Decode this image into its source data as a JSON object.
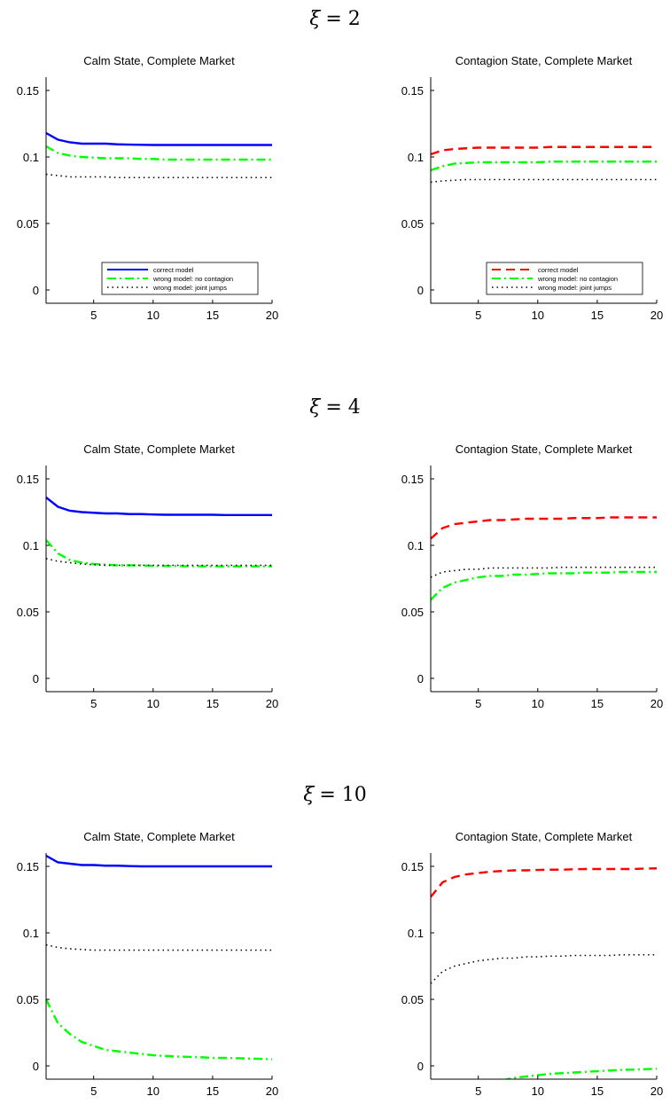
{
  "chart_data": [
    {
      "type": "line",
      "row_label": {
        "symbol": "ξ",
        "value": "= 2"
      },
      "title": "Calm State, Complete Market",
      "xlim": [
        1,
        20
      ],
      "ylim": [
        -0.01,
        0.16
      ],
      "xticks": [
        "5",
        "10",
        "15",
        "20"
      ],
      "yticks": [
        "0",
        "0.05",
        "0.1",
        "0.15"
      ],
      "legend": "bottom-right",
      "x": [
        1,
        2,
        3,
        4,
        5,
        6,
        7,
        8,
        9,
        10,
        11,
        12,
        13,
        14,
        15,
        16,
        17,
        18,
        19,
        20
      ],
      "series": [
        {
          "name": "correct model",
          "color": "#0000ff",
          "style": "solid",
          "values": [
            0.118,
            0.113,
            0.111,
            0.11,
            0.11,
            0.11,
            0.1095,
            0.1093,
            0.1091,
            0.109,
            0.109,
            0.109,
            0.109,
            0.109,
            0.109,
            0.109,
            0.109,
            0.109,
            0.109,
            0.109
          ]
        },
        {
          "name": "wrong model: no contagion",
          "color": "#00ff00",
          "style": "dashdot",
          "values": [
            0.108,
            0.103,
            0.101,
            0.1,
            0.0995,
            0.099,
            0.099,
            0.099,
            0.0985,
            0.0985,
            0.098,
            0.098,
            0.098,
            0.098,
            0.098,
            0.098,
            0.098,
            0.098,
            0.098,
            0.098
          ]
        },
        {
          "name": "wrong model: joint jumps",
          "color": "#000000",
          "style": "dotted",
          "values": [
            0.087,
            0.086,
            0.085,
            0.085,
            0.085,
            0.085,
            0.0845,
            0.0845,
            0.0845,
            0.0845,
            0.0845,
            0.0845,
            0.0845,
            0.0845,
            0.0845,
            0.0845,
            0.0845,
            0.0845,
            0.0845,
            0.0845
          ]
        }
      ]
    },
    {
      "type": "line",
      "title": "Contagion State, Complete Market",
      "xlim": [
        1,
        20
      ],
      "ylim": [
        -0.01,
        0.16
      ],
      "xticks": [
        "5",
        "10",
        "15",
        "20"
      ],
      "yticks": [
        "0",
        "0.05",
        "0.1",
        "0.15"
      ],
      "legend": "bottom-right",
      "x": [
        1,
        2,
        3,
        4,
        5,
        6,
        7,
        8,
        9,
        10,
        11,
        12,
        13,
        14,
        15,
        16,
        17,
        18,
        19,
        20
      ],
      "series": [
        {
          "name": "correct model",
          "color": "#ff0000",
          "style": "dashed",
          "values": [
            0.102,
            0.105,
            0.106,
            0.1065,
            0.107,
            0.107,
            0.107,
            0.107,
            0.107,
            0.107,
            0.1075,
            0.1075,
            0.1075,
            0.1075,
            0.1075,
            0.1075,
            0.1075,
            0.1075,
            0.1075,
            0.1075
          ]
        },
        {
          "name": "wrong model: no contagion",
          "color": "#00ff00",
          "style": "dashdot",
          "values": [
            0.09,
            0.093,
            0.095,
            0.0955,
            0.096,
            0.096,
            0.096,
            0.096,
            0.096,
            0.096,
            0.0965,
            0.0965,
            0.0965,
            0.0965,
            0.0965,
            0.0965,
            0.0965,
            0.0965,
            0.0965,
            0.0965
          ]
        },
        {
          "name": "wrong model: joint jumps",
          "color": "#000000",
          "style": "dotted",
          "values": [
            0.081,
            0.082,
            0.0825,
            0.083,
            0.083,
            0.083,
            0.083,
            0.083,
            0.083,
            0.083,
            0.083,
            0.083,
            0.083,
            0.083,
            0.083,
            0.083,
            0.083,
            0.083,
            0.083,
            0.083
          ]
        }
      ]
    },
    {
      "type": "line",
      "row_label": {
        "symbol": "ξ",
        "value": "= 4"
      },
      "title": "Calm State, Complete Market",
      "xlim": [
        1,
        20
      ],
      "ylim": [
        -0.01,
        0.16
      ],
      "xticks": [
        "5",
        "10",
        "15",
        "20"
      ],
      "yticks": [
        "0",
        "0.05",
        "0.1",
        "0.15"
      ],
      "x": [
        1,
        2,
        3,
        4,
        5,
        6,
        7,
        8,
        9,
        10,
        11,
        12,
        13,
        14,
        15,
        16,
        17,
        18,
        19,
        20
      ],
      "series": [
        {
          "color": "#0000ff",
          "style": "solid",
          "values": [
            0.136,
            0.129,
            0.126,
            0.125,
            0.1245,
            0.124,
            0.124,
            0.1235,
            0.1235,
            0.1232,
            0.123,
            0.123,
            0.123,
            0.123,
            0.123,
            0.1228,
            0.1228,
            0.1228,
            0.1228,
            0.1228
          ]
        },
        {
          "color": "#00ff00",
          "style": "dashdot",
          "values": [
            0.104,
            0.094,
            0.089,
            0.087,
            0.086,
            0.0855,
            0.085,
            0.085,
            0.085,
            0.0845,
            0.0845,
            0.0845,
            0.0843,
            0.0843,
            0.0842,
            0.0842,
            0.0842,
            0.0842,
            0.0842,
            0.0842
          ]
        },
        {
          "color": "#000000",
          "style": "dotted",
          "values": [
            0.09,
            0.088,
            0.087,
            0.086,
            0.0855,
            0.085,
            0.085,
            0.085,
            0.085,
            0.085,
            0.085,
            0.085,
            0.085,
            0.085,
            0.085,
            0.085,
            0.085,
            0.085,
            0.085,
            0.085
          ]
        }
      ]
    },
    {
      "type": "line",
      "title": "Contagion State, Complete Market",
      "xlim": [
        1,
        20
      ],
      "ylim": [
        -0.01,
        0.16
      ],
      "xticks": [
        "5",
        "10",
        "15",
        "20"
      ],
      "yticks": [
        "0",
        "0.05",
        "0.1",
        "0.15"
      ],
      "x": [
        1,
        2,
        3,
        4,
        5,
        6,
        7,
        8,
        9,
        10,
        11,
        12,
        13,
        14,
        15,
        16,
        17,
        18,
        19,
        20
      ],
      "series": [
        {
          "color": "#ff0000",
          "style": "dashed",
          "values": [
            0.105,
            0.113,
            0.116,
            0.117,
            0.118,
            0.119,
            0.119,
            0.1195,
            0.12,
            0.12,
            0.12,
            0.12,
            0.1205,
            0.1205,
            0.1205,
            0.121,
            0.121,
            0.121,
            0.121,
            0.121
          ]
        },
        {
          "color": "#00ff00",
          "style": "dashdot",
          "values": [
            0.059,
            0.068,
            0.072,
            0.074,
            0.076,
            0.077,
            0.077,
            0.078,
            0.078,
            0.0785,
            0.079,
            0.079,
            0.079,
            0.0795,
            0.0795,
            0.0795,
            0.08,
            0.08,
            0.08,
            0.08
          ]
        },
        {
          "color": "#000000",
          "style": "dotted",
          "values": [
            0.076,
            0.08,
            0.081,
            0.082,
            0.082,
            0.083,
            0.083,
            0.083,
            0.083,
            0.083,
            0.083,
            0.0835,
            0.0835,
            0.0835,
            0.0835,
            0.0835,
            0.0835,
            0.0835,
            0.0835,
            0.0835
          ]
        }
      ]
    },
    {
      "type": "line",
      "row_label": {
        "symbol": "ξ",
        "value": "= 10"
      },
      "title": "Calm State, Complete Market",
      "xlim": [
        1,
        20
      ],
      "ylim": [
        -0.01,
        0.16
      ],
      "xticks": [
        "5",
        "10",
        "15",
        "20"
      ],
      "yticks": [
        "0",
        "0.05",
        "0.1",
        "0.15"
      ],
      "x": [
        1,
        2,
        3,
        4,
        5,
        6,
        7,
        8,
        9,
        10,
        11,
        12,
        13,
        14,
        15,
        16,
        17,
        18,
        19,
        20
      ],
      "series": [
        {
          "color": "#0000ff",
          "style": "solid",
          "values": [
            0.158,
            0.153,
            0.152,
            0.151,
            0.151,
            0.1505,
            0.1505,
            0.1502,
            0.15,
            0.15,
            0.15,
            0.15,
            0.15,
            0.15,
            0.15,
            0.15,
            0.15,
            0.15,
            0.15,
            0.15
          ]
        },
        {
          "color": "#00ff00",
          "style": "dashdot",
          "values": [
            0.05,
            0.032,
            0.024,
            0.018,
            0.015,
            0.012,
            0.011,
            0.01,
            0.009,
            0.008,
            0.0075,
            0.007,
            0.0068,
            0.0065,
            0.006,
            0.006,
            0.0058,
            0.0055,
            0.0053,
            0.005
          ]
        },
        {
          "color": "#000000",
          "style": "dotted",
          "values": [
            0.091,
            0.089,
            0.088,
            0.0875,
            0.087,
            0.087,
            0.087,
            0.087,
            0.087,
            0.087,
            0.087,
            0.087,
            0.087,
            0.087,
            0.087,
            0.087,
            0.087,
            0.087,
            0.087,
            0.087
          ]
        }
      ]
    },
    {
      "type": "line",
      "title": "Contagion State, Complete Market",
      "xlim": [
        1,
        20
      ],
      "ylim": [
        -0.01,
        0.16
      ],
      "xticks": [
        "5",
        "10",
        "15",
        "20"
      ],
      "yticks": [
        "0",
        "0.05",
        "0.1",
        "0.15"
      ],
      "x": [
        1,
        2,
        3,
        4,
        5,
        6,
        7,
        8,
        9,
        10,
        11,
        12,
        13,
        14,
        15,
        16,
        17,
        18,
        19,
        20
      ],
      "series": [
        {
          "color": "#ff0000",
          "style": "dashed",
          "values": [
            0.127,
            0.138,
            0.142,
            0.144,
            0.145,
            0.146,
            0.1465,
            0.147,
            0.147,
            0.1473,
            0.1475,
            0.1475,
            0.1478,
            0.148,
            0.148,
            0.148,
            0.148,
            0.148,
            0.1483,
            0.1485
          ]
        },
        {
          "color": "#00ff00",
          "style": "dashdot",
          "x": [
            7,
            8,
            9,
            10,
            11,
            12,
            13,
            14,
            15,
            16,
            17,
            18,
            19,
            20
          ],
          "values": [
            -0.011,
            -0.009,
            -0.008,
            -0.007,
            -0.006,
            -0.0055,
            -0.005,
            -0.0045,
            -0.004,
            -0.0035,
            -0.003,
            -0.0028,
            -0.0025,
            -0.0022
          ]
        },
        {
          "color": "#000000",
          "style": "dotted",
          "values": [
            0.062,
            0.071,
            0.075,
            0.077,
            0.079,
            0.08,
            0.081,
            0.081,
            0.082,
            0.082,
            0.0825,
            0.0825,
            0.083,
            0.083,
            0.083,
            0.083,
            0.0835,
            0.0835,
            0.0835,
            0.0835
          ]
        }
      ]
    }
  ]
}
